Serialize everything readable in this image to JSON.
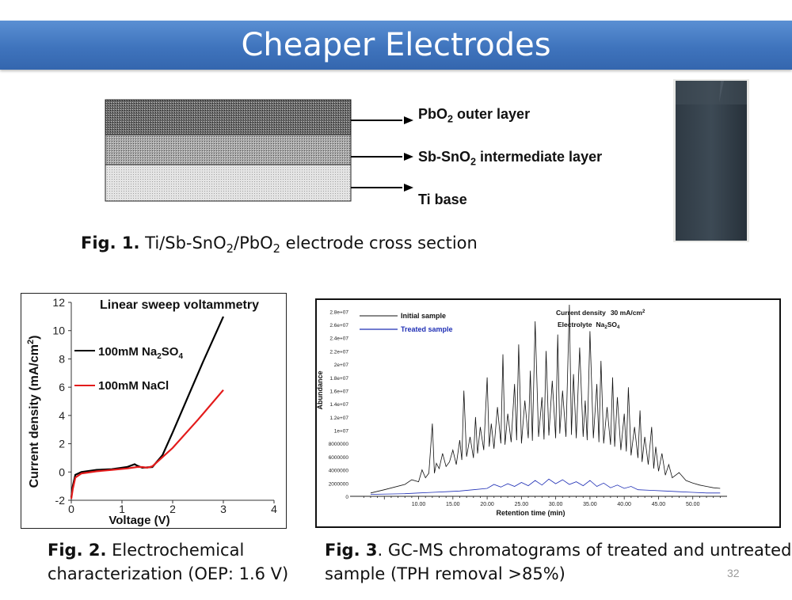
{
  "header": {
    "title": "Cheaper Electrodes"
  },
  "fig1": {
    "layers": [
      {
        "formula": [
          "PbO",
          "2",
          ""
        ],
        "rest": " outer layer"
      },
      {
        "formula": [
          "Sb-SnO",
          "2",
          ""
        ],
        "rest": " intermediate layer"
      },
      {
        "formula": [
          "Ti base",
          "",
          ""
        ],
        "rest": ""
      }
    ],
    "caption_label": "Fig. 1.",
    "caption_parts": [
      " Ti/Sb-SnO",
      "2",
      "/PbO",
      "2",
      " electrode cross section"
    ]
  },
  "fig2": {
    "caption_label": "Fig. 2.",
    "caption_line1": "  Electrochemical",
    "caption_line2": "characterization (OEP: 1.6 V)",
    "chart_data": {
      "type": "line",
      "title": "Linear sweep voltammetry",
      "xlabel": "Voltage (V)",
      "ylabel": "Current density (mA/cm",
      "ylabel_sup": "2",
      "ylabel_end": ")",
      "xlim": [
        0,
        4
      ],
      "ylim": [
        -2,
        12
      ],
      "xticks": [
        0,
        1,
        2,
        3,
        4
      ],
      "yticks": [
        -2,
        0,
        2,
        4,
        6,
        8,
        10,
        12
      ],
      "legend_placement": "left",
      "series": [
        {
          "name": "100mM Na2SO4",
          "legend_main": "100mM Na",
          "legend_sub": "2",
          "legend_mid": "SO",
          "legend_sub2": "4",
          "color": "#000000",
          "x": [
            0,
            0.03,
            0.08,
            0.2,
            0.5,
            0.8,
            1.1,
            1.25,
            1.3,
            1.4,
            1.6,
            1.8,
            2.0,
            2.3,
            2.6,
            3.0
          ],
          "y": [
            -1.8,
            -1.0,
            -0.2,
            0.0,
            0.15,
            0.2,
            0.35,
            0.55,
            0.45,
            0.3,
            0.35,
            1.2,
            2.8,
            5.3,
            7.8,
            11.0
          ]
        },
        {
          "name": "100mM NaCl",
          "legend_main": "100mM NaCl",
          "legend_sub": "",
          "legend_mid": "",
          "legend_sub2": "",
          "color": "#e31b1b",
          "x": [
            0,
            0.03,
            0.08,
            0.2,
            0.5,
            0.8,
            1.1,
            1.3,
            1.4,
            1.5,
            1.6,
            2.0,
            2.5,
            3.0
          ],
          "y": [
            -1.9,
            -1.2,
            -0.4,
            -0.1,
            0.05,
            0.15,
            0.25,
            0.35,
            0.35,
            0.3,
            0.4,
            1.7,
            3.7,
            5.8
          ]
        }
      ]
    }
  },
  "fig3": {
    "caption_label": "Fig. 3",
    "caption_line1": ". GC-MS chromatograms of treated and untreated",
    "caption_line2": "sample (TPH removal  >85%)",
    "chart_data": {
      "type": "line",
      "title": "",
      "xlabel": "Retention time (min)",
      "ylabel": "Abundance",
      "xlim": [
        0,
        55
      ],
      "ylim": [
        0,
        29000000
      ],
      "xtick_labels": [
        "10.00",
        "15.00",
        "20.00",
        "25.00",
        "30.00",
        "35.00",
        "40.00",
        "45.00",
        "50.00"
      ],
      "xtick_values": [
        10,
        15,
        20,
        25,
        30,
        35,
        40,
        45,
        50
      ],
      "ytick_labels": [
        "2000000",
        "4000000",
        "6000000",
        "8000000",
        "1e+07",
        "1.2e+07",
        "1.4e+07",
        "1.6e+07",
        "1.8e+07",
        "2e+07",
        "2.2e+07",
        "2.4e+07",
        "2.6e+07",
        "2.8e+07"
      ],
      "ytick_values": [
        2000000,
        4000000,
        6000000,
        8000000,
        10000000,
        12000000,
        14000000,
        16000000,
        18000000,
        20000000,
        22000000,
        24000000,
        26000000,
        28000000
      ],
      "annotation_line1_label": "Current density",
      "annotation_line1_value": "30 mA/cm",
      "annotation_line1_sup": "2",
      "annotation_line2_label": "Electrolyte",
      "annotation_line2_value": "Na",
      "annotation_line2_sub": "2",
      "annotation_line2_value2": "SO",
      "annotation_line2_sub2": "4",
      "series": [
        {
          "name": "Initial sample",
          "color": "#111111",
          "x": [
            3,
            5,
            8,
            9,
            10,
            10.5,
            11,
            11.5,
            12,
            12.3,
            12.6,
            13,
            13.5,
            14,
            14.5,
            15,
            15.5,
            16,
            16.3,
            16.6,
            17,
            17.5,
            18,
            18.3,
            18.6,
            19,
            19.5,
            20,
            20.3,
            20.6,
            21,
            21.5,
            22,
            22.3,
            22.6,
            23,
            23.5,
            24,
            24.3,
            24.6,
            25,
            25.5,
            26,
            26.3,
            26.6,
            27,
            27.5,
            28,
            28.3,
            28.6,
            29,
            29.5,
            30,
            30.3,
            30.6,
            31,
            31.5,
            32,
            32.3,
            32.6,
            33,
            33.5,
            34,
            34.3,
            34.6,
            35,
            35.5,
            36,
            36.3,
            36.6,
            37,
            37.5,
            38,
            38.3,
            38.6,
            39,
            39.5,
            40,
            40.3,
            40.6,
            41,
            41.5,
            42,
            42.3,
            42.6,
            43,
            43.5,
            44,
            44.3,
            44.6,
            45,
            45.5,
            46,
            46.5,
            47,
            48,
            49,
            50,
            51,
            52,
            53,
            54
          ],
          "y": [
            500000,
            1000000,
            1800000,
            2500000,
            2200000,
            4000000,
            2800000,
            3500000,
            11000000,
            3500000,
            5000000,
            4200000,
            6500000,
            4500000,
            5200000,
            7000000,
            4800000,
            8500000,
            5500000,
            16000000,
            6000000,
            9000000,
            5800000,
            12000000,
            6500000,
            10500000,
            7000000,
            18000000,
            7500000,
            11000000,
            7200000,
            13500000,
            8000000,
            21500000,
            7800000,
            12500000,
            8200000,
            17000000,
            8500000,
            23000000,
            8000000,
            14500000,
            8800000,
            19000000,
            8400000,
            26500000,
            9000000,
            15000000,
            8600000,
            22000000,
            9200000,
            17500000,
            8800000,
            24500000,
            9500000,
            16000000,
            9000000,
            29000000,
            9300000,
            18500000,
            8800000,
            22500000,
            9000000,
            14500000,
            8500000,
            25000000,
            8800000,
            17000000,
            8200000,
            20500000,
            8000000,
            13500000,
            7800000,
            18000000,
            7500000,
            15000000,
            7000000,
            12500000,
            6800000,
            16500000,
            6200000,
            10500000,
            5800000,
            13000000,
            5200000,
            9000000,
            4800000,
            10500000,
            4200000,
            7500000,
            3800000,
            6500000,
            3200000,
            4800000,
            2800000,
            3600000,
            2400000,
            2000000,
            1700000,
            1500000,
            1300000,
            1200000
          ]
        },
        {
          "name": "Treated sample",
          "color": "#1f2fb5",
          "x": [
            3,
            8,
            10,
            12,
            14,
            16,
            18,
            20,
            21,
            22,
            23,
            24,
            25,
            26,
            27,
            28,
            29,
            30,
            31,
            32,
            33,
            34,
            35,
            36,
            37,
            38,
            39,
            40,
            41,
            42,
            44,
            46,
            48,
            50,
            52,
            54
          ],
          "y": [
            300000,
            400000,
            500000,
            600000,
            700000,
            800000,
            1000000,
            1200000,
            1800000,
            1400000,
            1900000,
            1500000,
            2100000,
            1600000,
            2400000,
            1700000,
            2600000,
            1900000,
            2500000,
            1800000,
            2200000,
            1600000,
            2400000,
            1500000,
            2000000,
            1300000,
            1700000,
            1200000,
            1500000,
            1000000,
            900000,
            800000,
            700000,
            600000,
            500000,
            500000
          ]
        }
      ]
    }
  },
  "footer": {
    "slide_number": "32"
  },
  "colors": {
    "title_bar": "#4278c2",
    "title_text": "#ffffff"
  }
}
